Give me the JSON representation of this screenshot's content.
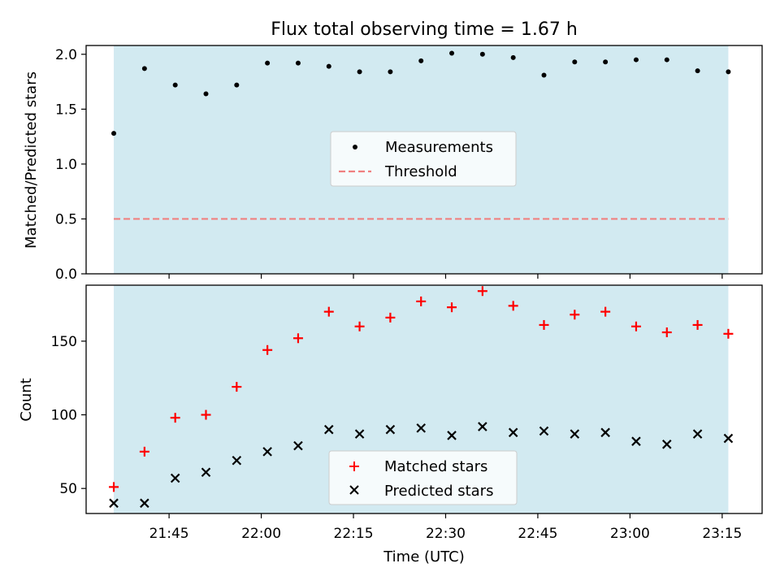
{
  "figure": {
    "title": "Flux total observing time = 1.67 h",
    "xlabel": "Time (UTC)",
    "colors": {
      "shade": "#add8e6",
      "matched": "#ff0000",
      "predicted": "#000000",
      "threshold": "#f08080",
      "measurements": "#000000"
    }
  },
  "chart_data": [
    {
      "type": "scatter",
      "panel": "top",
      "title": "Flux total observing time = 1.67 h",
      "xlabel": "",
      "ylabel": "Matched/Predicted stars",
      "ylim": [
        0,
        2.08
      ],
      "yticks": [
        0.0,
        0.5,
        1.0,
        1.5,
        2.0
      ],
      "ytick_labels": [
        "0.0",
        "0.5",
        "1.0",
        "1.5",
        "2.0"
      ],
      "x_range": [
        "21:31:30",
        "23:21:30"
      ],
      "shaded_interval": [
        "21:36",
        "23:16"
      ],
      "xticks": [
        "21:45",
        "22:00",
        "22:15",
        "22:30",
        "22:45",
        "23:00",
        "23:15"
      ],
      "legend": {
        "placement": "center",
        "entries": [
          "Measurements",
          "Threshold"
        ]
      },
      "series": [
        {
          "name": "Measurements",
          "marker": "dot",
          "x": [
            "21:36",
            "21:41",
            "21:46",
            "21:51",
            "21:56",
            "22:01",
            "22:06",
            "22:11",
            "22:16",
            "22:21",
            "22:26",
            "22:31",
            "22:36",
            "22:41",
            "22:46",
            "22:51",
            "22:56",
            "23:01",
            "23:06",
            "23:11",
            "23:16"
          ],
          "y": [
            1.28,
            1.87,
            1.72,
            1.64,
            1.72,
            1.92,
            1.92,
            1.89,
            1.84,
            1.84,
            1.94,
            2.01,
            2.0,
            1.97,
            1.81,
            1.93,
            1.93,
            1.95,
            1.95,
            1.85,
            1.84
          ]
        },
        {
          "name": "Threshold",
          "style": "dashed",
          "x": [
            "21:36",
            "23:16"
          ],
          "y": [
            0.5,
            0.5
          ]
        }
      ]
    },
    {
      "type": "scatter",
      "panel": "bottom",
      "xlabel": "Time (UTC)",
      "ylabel": "Count",
      "ylim": [
        33,
        188
      ],
      "yticks": [
        50,
        100,
        150
      ],
      "ytick_labels": [
        "50",
        "100",
        "150"
      ],
      "x_range": [
        "21:31:30",
        "23:21:30"
      ],
      "shaded_interval": [
        "21:36",
        "23:16"
      ],
      "xticks": [
        "21:45",
        "22:00",
        "22:15",
        "22:30",
        "22:45",
        "23:00",
        "23:15"
      ],
      "xtick_labels": [
        "21:45",
        "22:00",
        "22:15",
        "22:30",
        "22:45",
        "23:00",
        "23:15"
      ],
      "legend": {
        "placement": "lower center",
        "entries": [
          "Matched stars",
          "Predicted stars"
        ]
      },
      "series": [
        {
          "name": "Matched stars",
          "marker": "plus",
          "x": [
            "21:36",
            "21:41",
            "21:46",
            "21:51",
            "21:56",
            "22:01",
            "22:06",
            "22:11",
            "22:16",
            "22:21",
            "22:26",
            "22:31",
            "22:36",
            "22:41",
            "22:46",
            "22:51",
            "22:56",
            "23:01",
            "23:06",
            "23:11",
            "23:16"
          ],
          "y": [
            51,
            75,
            98,
            100,
            119,
            144,
            152,
            170,
            160,
            166,
            177,
            173,
            184,
            174,
            161,
            168,
            170,
            160,
            156,
            161,
            155
          ]
        },
        {
          "name": "Predicted stars",
          "marker": "x",
          "x": [
            "21:36",
            "21:41",
            "21:46",
            "21:51",
            "21:56",
            "22:01",
            "22:06",
            "22:11",
            "22:16",
            "22:21",
            "22:26",
            "22:31",
            "22:36",
            "22:41",
            "22:46",
            "22:51",
            "22:56",
            "23:01",
            "23:06",
            "23:11",
            "23:16"
          ],
          "y": [
            40,
            40,
            57,
            61,
            69,
            75,
            79,
            90,
            87,
            90,
            91,
            86,
            92,
            88,
            89,
            87,
            88,
            82,
            80,
            87,
            84
          ]
        }
      ]
    }
  ]
}
